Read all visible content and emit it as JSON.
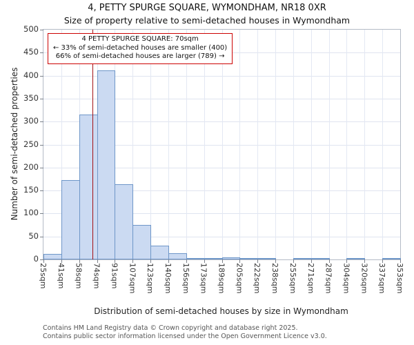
{
  "footer": {
    "line1": "Contains HM Land Registry data © Crown copyright and database right 2025.",
    "line2": "Contains public sector information licensed under the Open Government Licence v3.0."
  },
  "chart_data": {
    "type": "bar",
    "title": "4, PETTY SPURGE SQUARE, WYMONDHAM, NR18 0XR",
    "subtitle": "Size of property relative to semi-detached houses in Wymondham",
    "xlabel": "Distribution of semi-detached houses by size in Wymondham",
    "ylabel": "Number of semi-detached properties",
    "bin_edges": [
      25,
      41,
      58,
      74,
      91,
      107,
      123,
      140,
      156,
      173,
      189,
      205,
      222,
      238,
      255,
      271,
      287,
      304,
      320,
      337,
      353
    ],
    "bin_labels": [
      "25sqm",
      "41sqm",
      "58sqm",
      "74sqm",
      "91sqm",
      "107sqm",
      "123sqm",
      "140sqm",
      "156sqm",
      "173sqm",
      "189sqm",
      "205sqm",
      "222sqm",
      "238sqm",
      "255sqm",
      "271sqm",
      "287sqm",
      "304sqm",
      "320sqm",
      "337sqm",
      "353sqm"
    ],
    "values": [
      12,
      172,
      315,
      412,
      163,
      75,
      30,
      13,
      3,
      2,
      4,
      2,
      1,
      0,
      2,
      1,
      0,
      2,
      0,
      2
    ],
    "ylim": [
      0,
      500
    ],
    "ytick_step": 50,
    "grid": true,
    "legend": "none",
    "marker": {
      "value": 70,
      "lines": [
        "4 PETTY SPURGE SQUARE: 70sqm",
        "← 33% of semi-detached houses are smaller (400)",
        "66% of semi-detached houses are larger (789) →"
      ]
    },
    "colors": {
      "bar_fill": "#cbdaf2",
      "bar_edge": "#6e96c8",
      "marker_line": "#a31014",
      "annotation_border": "#cc0000",
      "grid": "#dfe4f0"
    }
  }
}
